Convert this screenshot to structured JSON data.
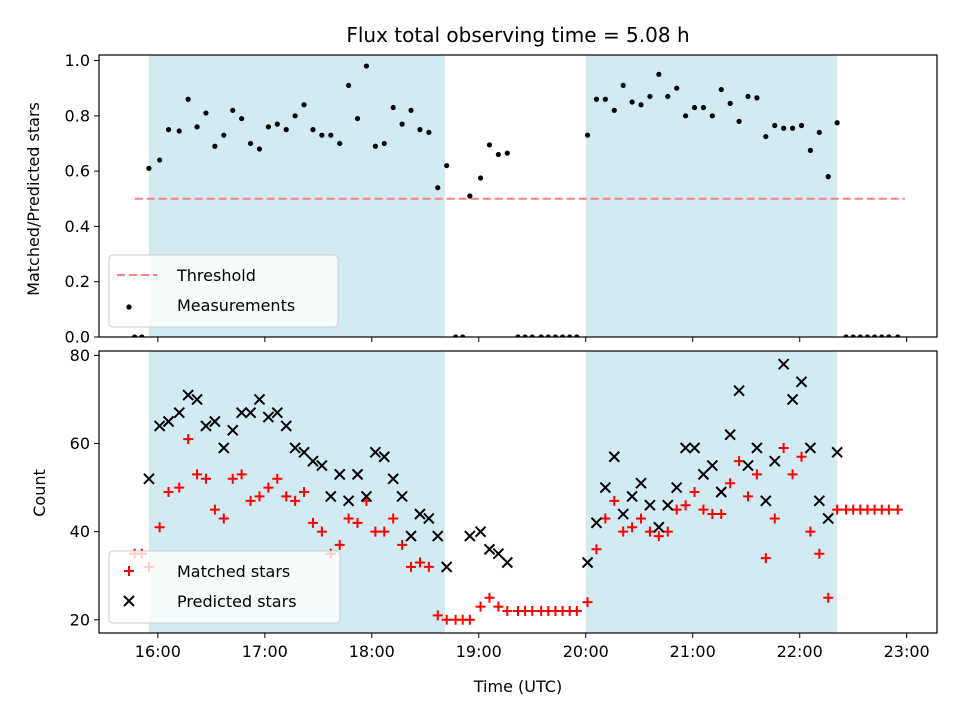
{
  "figure": {
    "title": "Flux total observing time = 5.08 h",
    "xlabel": "Time (UTC)",
    "top_ylabel": "Matched/Predicted stars",
    "bottom_ylabel": "Count"
  },
  "chart_data": [
    {
      "type": "scatter",
      "title": "Flux total observing time = 5.08 h",
      "xlabel": "",
      "ylabel": "Matched/Predicted stars",
      "xlim": [
        "15:27",
        "23:17"
      ],
      "ylim": [
        0,
        1.02
      ],
      "x_ticks": [
        "16:00",
        "17:00",
        "18:00",
        "19:00",
        "20:00",
        "21:00",
        "22:00",
        "23:00"
      ],
      "y_ticks": [
        0.0,
        0.2,
        0.4,
        0.6,
        0.8,
        1.0
      ],
      "y_tick_labels": [
        "0.0",
        "0.2",
        "0.4",
        "0.6",
        "0.8",
        "1.0"
      ],
      "shaded_intervals": [
        [
          "15:55",
          "18:41"
        ],
        [
          "20:00",
          "22:21"
        ]
      ],
      "shade_color": "#add8e6",
      "threshold": {
        "name": "Threshold",
        "value": 0.5,
        "x_range": [
          "15:47",
          "22:59"
        ],
        "color": "#ff7f7f",
        "style": "dashed"
      },
      "legend": {
        "position": "lower-left",
        "entries": [
          "Threshold",
          "Measurements"
        ]
      },
      "series": [
        {
          "name": "Measurements",
          "marker": "dot",
          "color": "#000000",
          "points": [
            [
              "15:47",
              0.0
            ],
            [
              "15:51",
              0.0
            ],
            [
              "15:55",
              0.61
            ],
            [
              "16:01",
              0.64
            ],
            [
              "16:06",
              0.75
            ],
            [
              "16:12",
              0.745
            ],
            [
              "16:17",
              0.86
            ],
            [
              "16:22",
              0.76
            ],
            [
              "16:27",
              0.81
            ],
            [
              "16:32",
              0.69
            ],
            [
              "16:37",
              0.73
            ],
            [
              "16:42",
              0.82
            ],
            [
              "16:47",
              0.79
            ],
            [
              "16:52",
              0.7
            ],
            [
              "16:57",
              0.68
            ],
            [
              "17:02",
              0.76
            ],
            [
              "17:07",
              0.77
            ],
            [
              "17:12",
              0.75
            ],
            [
              "17:17",
              0.8
            ],
            [
              "17:22",
              0.84
            ],
            [
              "17:27",
              0.75
            ],
            [
              "17:32",
              0.73
            ],
            [
              "17:37",
              0.73
            ],
            [
              "17:42",
              0.7
            ],
            [
              "17:47",
              0.91
            ],
            [
              "17:52",
              0.79
            ],
            [
              "17:57",
              0.98
            ],
            [
              "18:02",
              0.69
            ],
            [
              "18:07",
              0.7
            ],
            [
              "18:12",
              0.83
            ],
            [
              "18:17",
              0.77
            ],
            [
              "18:22",
              0.82
            ],
            [
              "18:27",
              0.75
            ],
            [
              "18:32",
              0.74
            ],
            [
              "18:37",
              0.54
            ],
            [
              "18:42",
              0.62
            ],
            [
              "18:47",
              0.0
            ],
            [
              "18:51",
              0.0
            ],
            [
              "18:55",
              0.51
            ],
            [
              "19:01",
              0.575
            ],
            [
              "19:06",
              0.695
            ],
            [
              "19:11",
              0.66
            ],
            [
              "19:16",
              0.665
            ],
            [
              "19:22",
              0.0
            ],
            [
              "19:26",
              0.0
            ],
            [
              "19:30",
              0.0
            ],
            [
              "19:35",
              0.0
            ],
            [
              "19:39",
              0.0
            ],
            [
              "19:43",
              0.0
            ],
            [
              "19:47",
              0.0
            ],
            [
              "19:51",
              0.0
            ],
            [
              "19:55",
              0.0
            ],
            [
              "20:01",
              0.73
            ],
            [
              "20:06",
              0.86
            ],
            [
              "20:11",
              0.86
            ],
            [
              "20:16",
              0.82
            ],
            [
              "20:21",
              0.91
            ],
            [
              "20:26",
              0.85
            ],
            [
              "20:31",
              0.84
            ],
            [
              "20:36",
              0.87
            ],
            [
              "20:41",
              0.95
            ],
            [
              "20:46",
              0.87
            ],
            [
              "20:51",
              0.9
            ],
            [
              "20:56",
              0.8
            ],
            [
              "21:01",
              0.83
            ],
            [
              "21:06",
              0.83
            ],
            [
              "21:11",
              0.8
            ],
            [
              "21:16",
              0.895
            ],
            [
              "21:21",
              0.845
            ],
            [
              "21:26",
              0.78
            ],
            [
              "21:31",
              0.87
            ],
            [
              "21:36",
              0.865
            ],
            [
              "21:41",
              0.725
            ],
            [
              "21:46",
              0.765
            ],
            [
              "21:51",
              0.755
            ],
            [
              "21:56",
              0.755
            ],
            [
              "22:01",
              0.765
            ],
            [
              "22:06",
              0.675
            ],
            [
              "22:11",
              0.74
            ],
            [
              "22:16",
              0.58
            ],
            [
              "22:21",
              0.775
            ],
            [
              "22:26",
              0.0
            ],
            [
              "22:30",
              0.0
            ],
            [
              "22:34",
              0.0
            ],
            [
              "22:38",
              0.0
            ],
            [
              "22:42",
              0.0
            ],
            [
              "22:46",
              0.0
            ],
            [
              "22:50",
              0.0
            ],
            [
              "22:55",
              0.0
            ]
          ]
        }
      ]
    },
    {
      "type": "scatter",
      "title": "",
      "xlabel": "Time (UTC)",
      "ylabel": "Count",
      "xlim": [
        "15:27",
        "23:17"
      ],
      "ylim": [
        17,
        81
      ],
      "x_ticks": [
        "16:00",
        "17:00",
        "18:00",
        "19:00",
        "20:00",
        "21:00",
        "22:00",
        "23:00"
      ],
      "y_ticks": [
        20,
        40,
        60,
        80
      ],
      "y_tick_labels": [
        "20",
        "40",
        "60",
        "80"
      ],
      "shaded_intervals": [
        [
          "15:55",
          "18:41"
        ],
        [
          "20:00",
          "22:21"
        ]
      ],
      "shade_color": "#add8e6",
      "legend": {
        "position": "lower-left",
        "entries": [
          "Matched stars",
          "Predicted stars"
        ]
      },
      "series": [
        {
          "name": "Matched stars",
          "marker": "plus",
          "color": "#ff0000",
          "points": [
            [
              "15:47",
              35
            ],
            [
              "15:51",
              35
            ],
            [
              "15:55",
              32
            ],
            [
              "16:01",
              41
            ],
            [
              "16:06",
              49
            ],
            [
              "16:12",
              50
            ],
            [
              "16:17",
              61
            ],
            [
              "16:22",
              53
            ],
            [
              "16:27",
              52
            ],
            [
              "16:32",
              45
            ],
            [
              "16:37",
              43
            ],
            [
              "16:42",
              52
            ],
            [
              "16:47",
              53
            ],
            [
              "16:52",
              47
            ],
            [
              "16:57",
              48
            ],
            [
              "17:02",
              50
            ],
            [
              "17:07",
              52
            ],
            [
              "17:12",
              48
            ],
            [
              "17:17",
              47
            ],
            [
              "17:22",
              49
            ],
            [
              "17:27",
              42
            ],
            [
              "17:32",
              40
            ],
            [
              "17:37",
              35
            ],
            [
              "17:42",
              37
            ],
            [
              "17:47",
              43
            ],
            [
              "17:52",
              42
            ],
            [
              "17:57",
              47
            ],
            [
              "18:02",
              40
            ],
            [
              "18:07",
              40
            ],
            [
              "18:12",
              43
            ],
            [
              "18:17",
              37
            ],
            [
              "18:22",
              32
            ],
            [
              "18:27",
              33
            ],
            [
              "18:32",
              32
            ],
            [
              "18:37",
              21
            ],
            [
              "18:42",
              20
            ],
            [
              "18:47",
              20
            ],
            [
              "18:51",
              20
            ],
            [
              "18:55",
              20
            ],
            [
              "19:01",
              23
            ],
            [
              "19:06",
              25
            ],
            [
              "19:11",
              23
            ],
            [
              "19:16",
              22
            ],
            [
              "19:22",
              22
            ],
            [
              "19:26",
              22
            ],
            [
              "19:30",
              22
            ],
            [
              "19:35",
              22
            ],
            [
              "19:39",
              22
            ],
            [
              "19:43",
              22
            ],
            [
              "19:47",
              22
            ],
            [
              "19:51",
              22
            ],
            [
              "19:55",
              22
            ],
            [
              "20:01",
              24
            ],
            [
              "20:06",
              36
            ],
            [
              "20:11",
              43
            ],
            [
              "20:16",
              47
            ],
            [
              "20:21",
              40
            ],
            [
              "20:26",
              41
            ],
            [
              "20:31",
              43
            ],
            [
              "20:36",
              40
            ],
            [
              "20:41",
              39
            ],
            [
              "20:46",
              40
            ],
            [
              "20:51",
              45
            ],
            [
              "20:56",
              46
            ],
            [
              "21:01",
              49
            ],
            [
              "21:06",
              45
            ],
            [
              "21:11",
              44
            ],
            [
              "21:16",
              44
            ],
            [
              "21:21",
              51
            ],
            [
              "21:26",
              56
            ],
            [
              "21:31",
              48
            ],
            [
              "21:36",
              53
            ],
            [
              "21:41",
              34
            ],
            [
              "21:46",
              43
            ],
            [
              "21:51",
              59
            ],
            [
              "21:56",
              53
            ],
            [
              "22:01",
              57
            ],
            [
              "22:06",
              40
            ],
            [
              "22:11",
              35
            ],
            [
              "22:16",
              25
            ],
            [
              "22:21",
              45
            ],
            [
              "22:26",
              45
            ],
            [
              "22:30",
              45
            ],
            [
              "22:34",
              45
            ],
            [
              "22:38",
              45
            ],
            [
              "22:42",
              45
            ],
            [
              "22:46",
              45
            ],
            [
              "22:50",
              45
            ],
            [
              "22:55",
              45
            ]
          ]
        },
        {
          "name": "Predicted stars",
          "marker": "x",
          "color": "#000000",
          "points": [
            [
              "15:55",
              52
            ],
            [
              "16:01",
              64
            ],
            [
              "16:06",
              65
            ],
            [
              "16:12",
              67
            ],
            [
              "16:17",
              71
            ],
            [
              "16:22",
              70
            ],
            [
              "16:27",
              64
            ],
            [
              "16:32",
              65
            ],
            [
              "16:37",
              59
            ],
            [
              "16:42",
              63
            ],
            [
              "16:47",
              67
            ],
            [
              "16:52",
              67
            ],
            [
              "16:57",
              70
            ],
            [
              "17:02",
              66
            ],
            [
              "17:07",
              67
            ],
            [
              "17:12",
              64
            ],
            [
              "17:17",
              59
            ],
            [
              "17:22",
              58
            ],
            [
              "17:27",
              56
            ],
            [
              "17:32",
              55
            ],
            [
              "17:37",
              48
            ],
            [
              "17:42",
              53
            ],
            [
              "17:47",
              47
            ],
            [
              "17:52",
              53
            ],
            [
              "17:57",
              48
            ],
            [
              "18:02",
              58
            ],
            [
              "18:07",
              57
            ],
            [
              "18:12",
              52
            ],
            [
              "18:17",
              48
            ],
            [
              "18:22",
              39
            ],
            [
              "18:27",
              44
            ],
            [
              "18:32",
              43
            ],
            [
              "18:37",
              39
            ],
            [
              "18:42",
              32
            ],
            [
              "18:55",
              39
            ],
            [
              "19:01",
              40
            ],
            [
              "19:06",
              36
            ],
            [
              "19:11",
              35
            ],
            [
              "19:16",
              33
            ],
            [
              "20:01",
              33
            ],
            [
              "20:06",
              42
            ],
            [
              "20:11",
              50
            ],
            [
              "20:16",
              57
            ],
            [
              "20:21",
              44
            ],
            [
              "20:26",
              48
            ],
            [
              "20:31",
              51
            ],
            [
              "20:36",
              46
            ],
            [
              "20:41",
              41
            ],
            [
              "20:46",
              46
            ],
            [
              "20:51",
              50
            ],
            [
              "20:56",
              59
            ],
            [
              "21:01",
              59
            ],
            [
              "21:06",
              53
            ],
            [
              "21:11",
              55
            ],
            [
              "21:16",
              49
            ],
            [
              "21:21",
              62
            ],
            [
              "21:26",
              72
            ],
            [
              "21:31",
              55
            ],
            [
              "21:36",
              59
            ],
            [
              "21:41",
              47
            ],
            [
              "21:46",
              56
            ],
            [
              "21:51",
              78
            ],
            [
              "21:56",
              70
            ],
            [
              "22:01",
              74
            ],
            [
              "22:06",
              59
            ],
            [
              "22:11",
              47
            ],
            [
              "22:16",
              43
            ],
            [
              "22:21",
              58
            ]
          ]
        }
      ]
    }
  ]
}
